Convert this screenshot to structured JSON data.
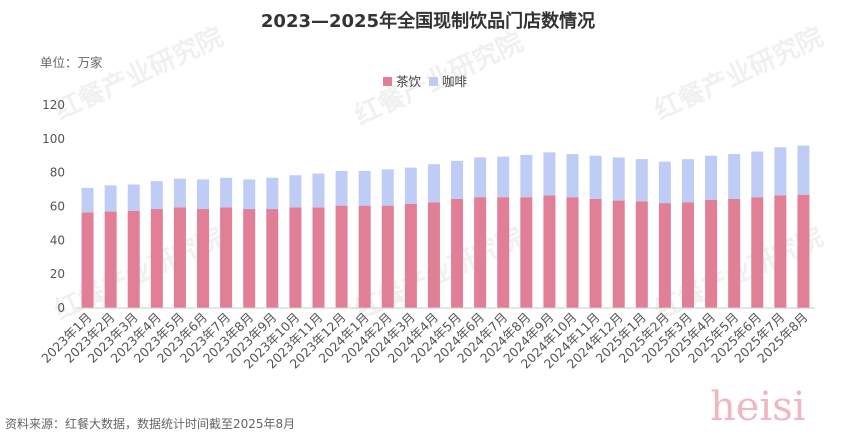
{
  "page": {
    "watermark_text": "红餐产业研究院",
    "signature_text": "heisi"
  },
  "chart_data": {
    "type": "bar",
    "stacked": true,
    "title": "2023—2025年全国现制饮品门店数情况",
    "unit_label": "单位：万家",
    "source": "资料来源：红餐大数据，数据统计时间截至2025年8月",
    "categories": [
      "2023年1月",
      "2023年2月",
      "2023年3月",
      "2023年4月",
      "2023年5月",
      "2023年6月",
      "2023年7月",
      "2023年8月",
      "2023年9月",
      "2023年10月",
      "2023年11月",
      "2023年12月",
      "2024年1月",
      "2024年2月",
      "2024年3月",
      "2024年4月",
      "2024年5月",
      "2024年6月",
      "2024年7月",
      "2024年8月",
      "2024年9月",
      "2024年10月",
      "2024年11月",
      "2024年12月",
      "2025年1月",
      "2025年2月",
      "2025年3月",
      "2025年4月",
      "2025年5月",
      "2025年6月",
      "2025年7月",
      "2025年8月"
    ],
    "series": [
      {
        "name": "茶饮",
        "color": "#e07f95",
        "values": [
          56.5,
          57,
          57.5,
          58.5,
          59.5,
          58.5,
          59.5,
          58.5,
          58.5,
          59.5,
          59.5,
          60.5,
          60.5,
          60.5,
          61.5,
          62.5,
          64.5,
          65.5,
          65.5,
          65.5,
          66.5,
          65.5,
          64.5,
          63.5,
          63,
          62,
          62.5,
          64,
          64.5,
          65.5,
          66.5,
          67
        ]
      },
      {
        "name": "咖啡",
        "color": "#bfccf5",
        "values": [
          14.5,
          15.5,
          15.5,
          16.5,
          17,
          17.5,
          17.5,
          17.5,
          18.5,
          19,
          20,
          20.5,
          20.5,
          21.5,
          21.5,
          22.5,
          22.5,
          23.5,
          24,
          25,
          25.5,
          25.5,
          25.5,
          25.5,
          25,
          24.5,
          25.5,
          26,
          26.5,
          27,
          28.5,
          29
        ]
      }
    ],
    "ylim": [
      0,
      120
    ],
    "yticks": [
      0,
      20,
      40,
      60,
      80,
      100,
      120
    ],
    "xlabel": "",
    "ylabel": "",
    "legend_position": "top-right",
    "grid": false
  }
}
